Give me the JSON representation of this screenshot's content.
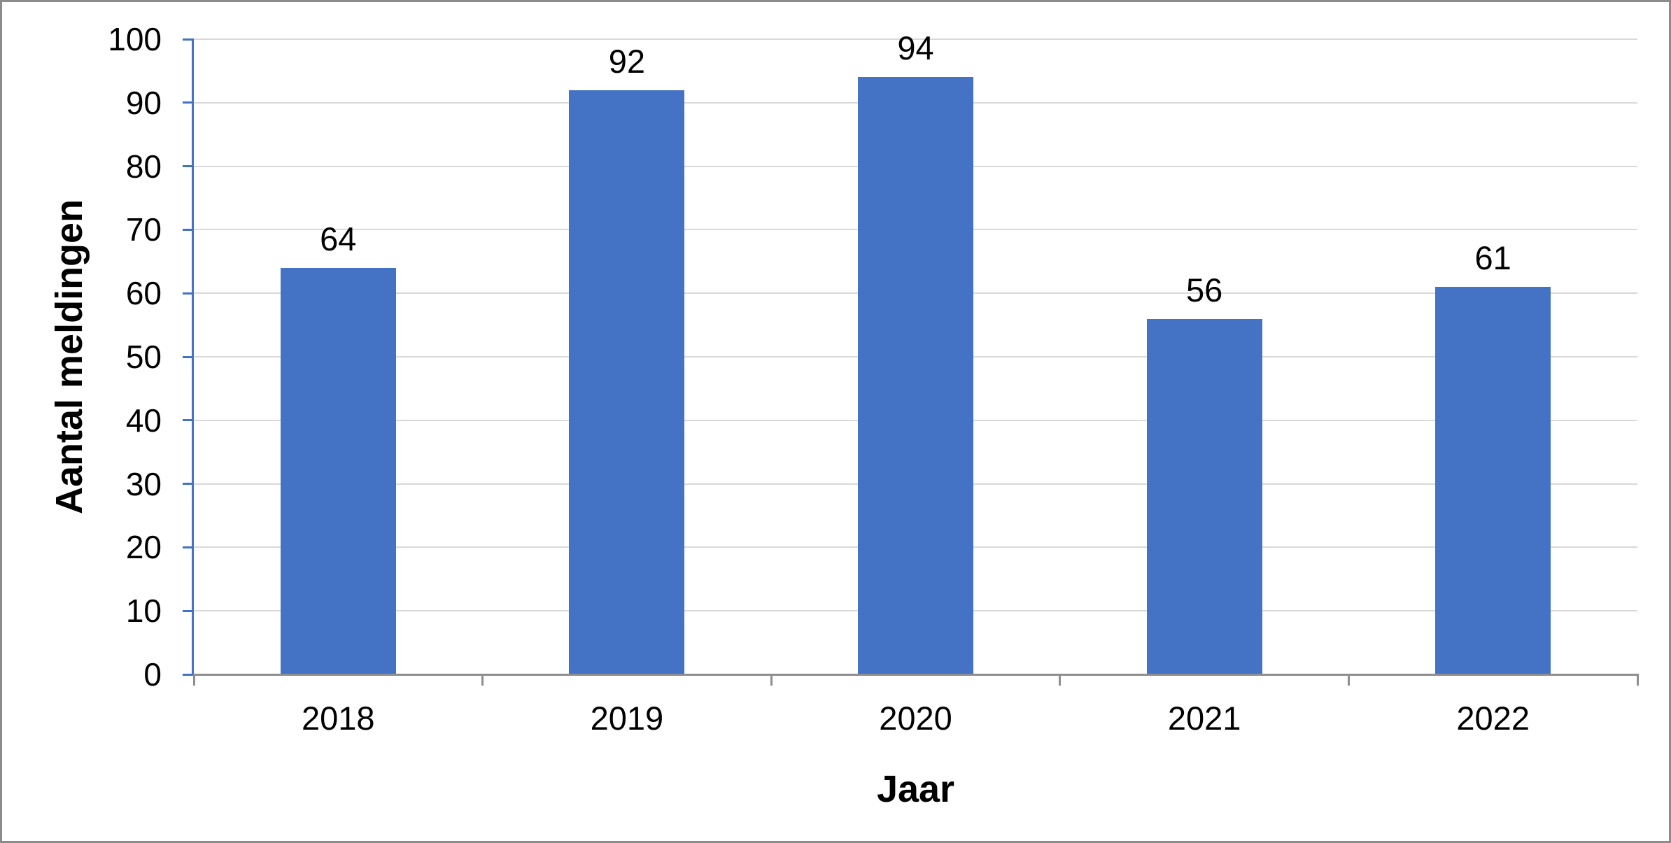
{
  "chart_data": {
    "type": "bar",
    "categories": [
      "2018",
      "2019",
      "2020",
      "2021",
      "2022"
    ],
    "values": [
      64,
      92,
      94,
      56,
      61
    ],
    "xlabel": "Jaar",
    "ylabel": "Aantal meldingen",
    "ylim": [
      0,
      100
    ],
    "yticks": [
      0,
      10,
      20,
      30,
      40,
      50,
      60,
      70,
      80,
      90,
      100
    ],
    "grid": "horizontal",
    "legend": "none",
    "data_labels_position": "outside-end",
    "colors": {
      "bar": "#4472C4",
      "y_axis": "#4472C4",
      "x_axis": "#8E8E8E",
      "gridline": "#D9D9D9",
      "text": "#000000",
      "frame_border": "#8C8C8C"
    }
  }
}
